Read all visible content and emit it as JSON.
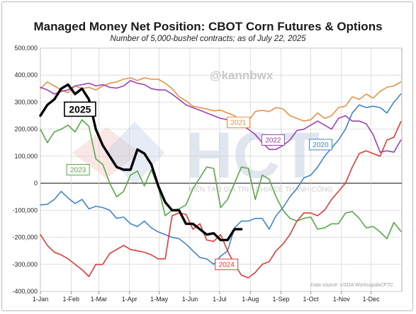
{
  "chart_data": {
    "type": "line",
    "title": "Managed Money Net Position: CBOT Corn Futures & Options",
    "subtitle": "Number of 5,000-bushel contracts; as of July 22, 2025",
    "handle": "@kannbwx",
    "source": "Data source: USDA WorksapdaCFTC",
    "watermark": {
      "logo_text": "HCT",
      "tagline": "KIẾN TẠO GIÁ TRỊ - CHIA SẺ THÀNH CÔNG"
    },
    "xlabel": "",
    "ylabel": "",
    "x_range": [
      0,
      365
    ],
    "ylim": [
      -400000,
      500000
    ],
    "y_ticks": [
      500000,
      400000,
      300000,
      200000,
      100000,
      0,
      -100000,
      -200000,
      -300000,
      -400000
    ],
    "y_tick_labels": [
      "500,000",
      "400,000",
      "300,000",
      "200,000",
      "100,000",
      "0",
      "-100,000",
      "-200,000",
      "-300,000",
      "-400,000"
    ],
    "x_ticks": [
      0,
      31,
      59,
      90,
      120,
      151,
      181,
      212,
      243,
      273,
      304,
      334
    ],
    "x_tick_labels": [
      "1-Jan",
      "1-Feb",
      "1-Mar",
      "1-Apr",
      "1-May",
      "1-Jun",
      "1-Jul",
      "1-Aug",
      "1-Sep",
      "1-Oct",
      "1-Nov",
      "1-Dec"
    ],
    "grid": true,
    "series": [
      {
        "name": "2021",
        "color": "#e8914a",
        "width": 1.6,
        "label": {
          "text": "2021",
          "x": 200,
          "y": 225000
        },
        "x": [
          0,
          7,
          14,
          21,
          28,
          35,
          42,
          49,
          56,
          63,
          70,
          77,
          84,
          91,
          98,
          105,
          112,
          119,
          126,
          133,
          140,
          147,
          154,
          161,
          168,
          175,
          182,
          189,
          196,
          203,
          210,
          217,
          224,
          231,
          238,
          245,
          252,
          259,
          266,
          273,
          280,
          287,
          294,
          301,
          308,
          315,
          322,
          329,
          336,
          343,
          350,
          357,
          364
        ],
        "y": [
          350000,
          375000,
          360000,
          345000,
          335000,
          360000,
          350000,
          355000,
          345000,
          360000,
          370000,
          375000,
          385000,
          390000,
          380000,
          390000,
          385000,
          385000,
          370000,
          350000,
          320000,
          305000,
          285000,
          280000,
          275000,
          268000,
          270000,
          260000,
          250000,
          225000,
          230000,
          265000,
          270000,
          265000,
          280000,
          275000,
          250000,
          240000,
          230000,
          235000,
          260000,
          240000,
          250000,
          280000,
          285000,
          320000,
          310000,
          330000,
          315000,
          340000,
          355000,
          360000,
          375000
        ]
      },
      {
        "name": "2022",
        "color": "#a23fb4",
        "width": 1.6,
        "label": {
          "text": "2022",
          "x": 235,
          "y": 160000
        },
        "x": [
          0,
          7,
          14,
          21,
          28,
          35,
          42,
          49,
          56,
          63,
          70,
          77,
          84,
          91,
          98,
          105,
          112,
          119,
          126,
          133,
          140,
          147,
          154,
          161,
          168,
          175,
          182,
          189,
          196,
          203,
          210,
          217,
          224,
          231,
          238,
          245,
          252,
          259,
          266,
          273,
          280,
          287,
          294,
          301,
          308,
          315,
          322,
          329,
          336,
          343,
          350,
          357,
          364
        ],
        "y": [
          355000,
          345000,
          330000,
          340000,
          345000,
          360000,
          365000,
          370000,
          360000,
          365000,
          355000,
          352000,
          360000,
          380000,
          370000,
          365000,
          350000,
          345000,
          345000,
          330000,
          310000,
          290000,
          280000,
          270000,
          260000,
          250000,
          240000,
          235000,
          225000,
          215000,
          200000,
          180000,
          150000,
          125000,
          125000,
          140000,
          160000,
          195000,
          200000,
          215000,
          230000,
          215000,
          200000,
          240000,
          250000,
          230000,
          230000,
          220000,
          180000,
          115000,
          120000,
          115000,
          160000
        ]
      },
      {
        "name": "2020",
        "color": "#3f86c8",
        "width": 1.6,
        "label": {
          "text": "2020",
          "x": 283,
          "y": 143000
        },
        "x": [
          0,
          7,
          14,
          21,
          28,
          35,
          42,
          49,
          56,
          63,
          70,
          77,
          84,
          91,
          98,
          105,
          112,
          119,
          126,
          133,
          140,
          147,
          154,
          161,
          168,
          175,
          182,
          189,
          196,
          203,
          210,
          217,
          224,
          231,
          238,
          245,
          252,
          259,
          266,
          273,
          280,
          287,
          294,
          301,
          308,
          315,
          322,
          329,
          336,
          343,
          350,
          357,
          364
        ],
        "y": [
          -80000,
          -78000,
          -60000,
          -30000,
          -55000,
          -75000,
          -60000,
          -95000,
          -85000,
          -90000,
          -100000,
          -130000,
          -125000,
          -150000,
          -160000,
          -140000,
          -165000,
          -180000,
          -190000,
          -200000,
          -205000,
          -225000,
          -250000,
          -275000,
          -280000,
          -300000,
          -270000,
          -250000,
          -165000,
          -140000,
          -140000,
          -130000,
          -130000,
          -170000,
          -120000,
          -90000,
          -50000,
          -20000,
          20000,
          30000,
          60000,
          100000,
          130000,
          160000,
          200000,
          260000,
          290000,
          280000,
          285000,
          280000,
          260000,
          300000,
          330000
        ]
      },
      {
        "name": "2023",
        "color": "#58a84a",
        "width": 1.6,
        "label": {
          "text": "2023",
          "x": 38,
          "y": 50000
        },
        "x": [
          0,
          7,
          14,
          21,
          28,
          35,
          42,
          49,
          56,
          63,
          70,
          77,
          84,
          91,
          98,
          105,
          112,
          119,
          126,
          133,
          140,
          147,
          154,
          161,
          168,
          175,
          182,
          189,
          196,
          203,
          210,
          217,
          224,
          231,
          238,
          245,
          252,
          259,
          266,
          273,
          280,
          287,
          294,
          301,
          308,
          315,
          322,
          329,
          336,
          343,
          350,
          357,
          364
        ],
        "y": [
          200000,
          150000,
          190000,
          200000,
          215000,
          190000,
          235000,
          210000,
          90000,
          70000,
          0,
          -50000,
          -30000,
          30000,
          45000,
          -10000,
          50000,
          -15000,
          -120000,
          -100000,
          -95000,
          -80000,
          -20000,
          20000,
          60000,
          55000,
          -90000,
          -60000,
          0,
          60000,
          55000,
          -60000,
          30000,
          15000,
          -50000,
          -100000,
          -130000,
          -140000,
          -130000,
          -125000,
          -170000,
          -165000,
          -150000,
          -150000,
          -110000,
          -105000,
          -130000,
          -165000,
          -160000,
          -180000,
          -205000,
          -145000,
          -178000
        ]
      },
      {
        "name": "2024",
        "color": "#e33b35",
        "width": 1.6,
        "label": {
          "text": "2024",
          "x": 188,
          "y": -300000
        },
        "x": [
          0,
          7,
          14,
          21,
          28,
          35,
          42,
          49,
          56,
          63,
          70,
          77,
          84,
          91,
          98,
          105,
          112,
          119,
          126,
          133,
          140,
          147,
          154,
          161,
          168,
          175,
          182,
          189,
          196,
          203,
          210,
          217,
          224,
          231,
          238,
          245,
          252,
          259,
          266,
          273,
          280,
          287,
          294,
          301,
          308,
          315,
          322,
          329,
          336,
          343,
          350,
          357,
          364
        ],
        "y": [
          -190000,
          -230000,
          -255000,
          -265000,
          -280000,
          -300000,
          -320000,
          -345000,
          -300000,
          -300000,
          -260000,
          -245000,
          -230000,
          -245000,
          -250000,
          -255000,
          -265000,
          -280000,
          -280000,
          -120000,
          -110000,
          -115000,
          -170000,
          -150000,
          -210000,
          -215000,
          -190000,
          -250000,
          -300000,
          -340000,
          -350000,
          -330000,
          -300000,
          -290000,
          -250000,
          -225000,
          -190000,
          -140000,
          -110000,
          -110000,
          -120000,
          -100000,
          -60000,
          -30000,
          0,
          60000,
          110000,
          120000,
          110000,
          100000,
          160000,
          170000,
          228000
        ]
      },
      {
        "name": "2025",
        "color": "#000000",
        "width": 3.4,
        "label": {
          "text": "2025",
          "x": 40,
          "y": 274000,
          "boxed": true
        },
        "x": [
          0,
          7,
          14,
          21,
          28,
          35,
          42,
          49,
          56,
          63,
          70,
          77,
          84,
          91,
          98,
          105,
          112,
          119,
          126,
          133,
          140,
          147,
          154,
          161,
          168,
          175,
          182,
          189,
          196,
          203
        ],
        "y": [
          250000,
          290000,
          310000,
          350000,
          365000,
          330000,
          350000,
          310000,
          200000,
          140000,
          100000,
          60000,
          50000,
          50000,
          125000,
          110000,
          70000,
          -10000,
          -70000,
          -100000,
          -100000,
          -150000,
          -150000,
          -170000,
          -190000,
          -185000,
          -210000,
          -210000,
          -170000,
          -170000
        ]
      }
    ]
  }
}
